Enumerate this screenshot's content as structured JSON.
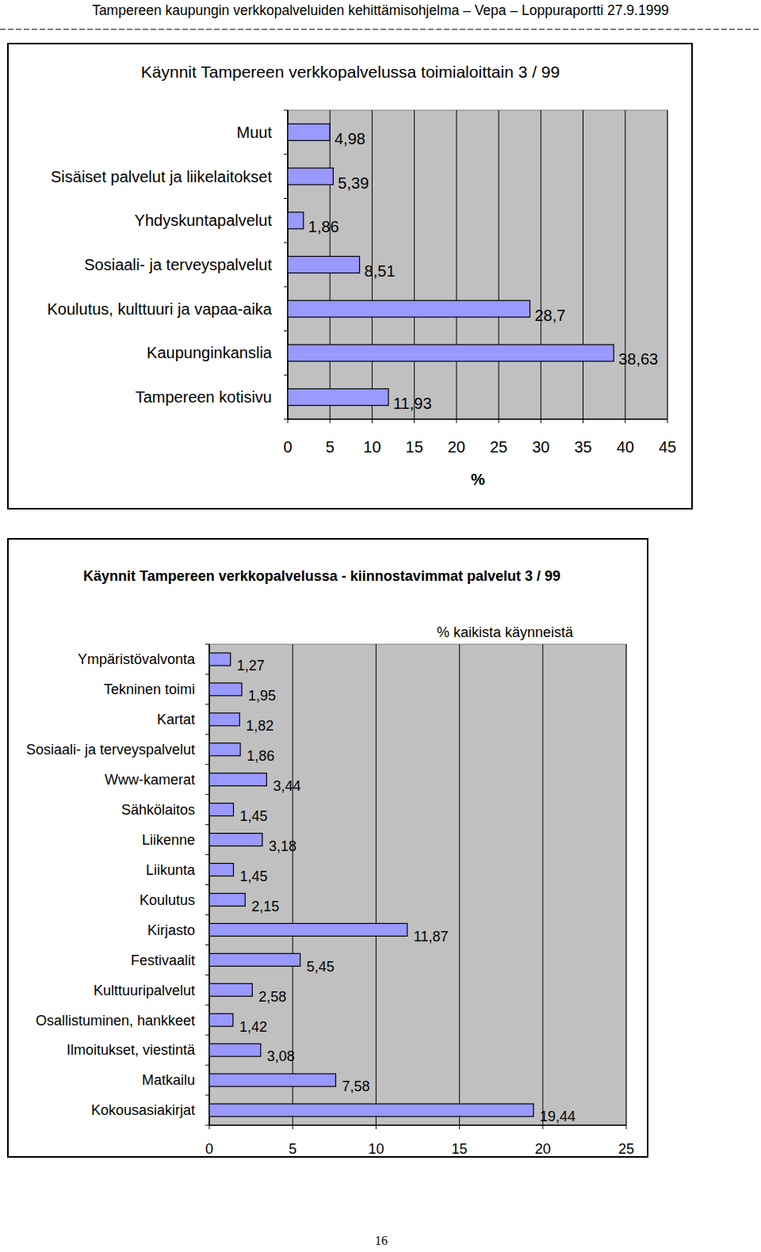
{
  "header": {
    "title": "Tampereen kaupungin verkkopalveluiden kehittämisohjelma – Vepa – Loppuraportti 27.9.1999"
  },
  "chart_data": [
    {
      "type": "bar",
      "orientation": "horizontal",
      "title": "Käynnit Tampereen verkkopalvelussa toimialoittain 3 / 99",
      "xlabel": "%",
      "categories": [
        "Muut",
        "Sisäiset palvelut ja liikelaitokset",
        "Yhdyskuntapalvelut",
        "Sosiaali- ja terveyspalvelut",
        "Koulutus, kulttuuri ja vapaa-aika",
        "Kaupunginkanslia",
        "Tampereen kotisivu"
      ],
      "values": [
        4.98,
        5.39,
        1.86,
        8.51,
        28.7,
        38.63,
        11.93
      ],
      "value_labels": [
        "4,98",
        "5,39",
        "1,86",
        "8,51",
        "28,7",
        "38,63",
        "11,93"
      ],
      "color": "#9999ff",
      "xlim": [
        0,
        45
      ],
      "xticks": [
        0,
        5,
        10,
        15,
        20,
        25,
        30,
        35,
        40,
        45
      ],
      "grid": true,
      "data_labels": true
    },
    {
      "type": "bar",
      "orientation": "horizontal",
      "title": "Käynnit Tampereen verkkopalvelussa - kiinnostavimmat palvelut 3 / 99",
      "xlabel": "% kaikista käynneistä",
      "categories": [
        "Ympäristövalvonta",
        "Tekninen toimi",
        "Kartat",
        "Sosiaali- ja terveyspalvelut",
        "Www-kamerat",
        "Sähkölaitos",
        "Liikenne",
        "Liikunta",
        "Koulutus",
        "Kirjasto",
        "Festivaalit",
        "Kulttuuripalvelut",
        "Osallistuminen, hankkeet",
        "Ilmoitukset, viestintä",
        "Matkailu",
        "Kokousasiakirjat"
      ],
      "values": [
        1.27,
        1.95,
        1.82,
        1.86,
        3.44,
        1.45,
        3.18,
        1.45,
        2.15,
        11.87,
        5.45,
        2.58,
        1.42,
        3.08,
        7.58,
        19.44
      ],
      "value_labels": [
        "1,27",
        "1,95",
        "1,82",
        "1,86",
        "3,44",
        "1,45",
        "3,18",
        "1,45",
        "2,15",
        "11,87",
        "5,45",
        "2,58",
        "1,42",
        "3,08",
        "7,58",
        "19,44"
      ],
      "color": "#9999ff",
      "xlim": [
        0,
        25
      ],
      "xticks": [
        0,
        5,
        10,
        15,
        20,
        25
      ],
      "grid": true,
      "data_labels": true
    }
  ],
  "page_number": "16"
}
